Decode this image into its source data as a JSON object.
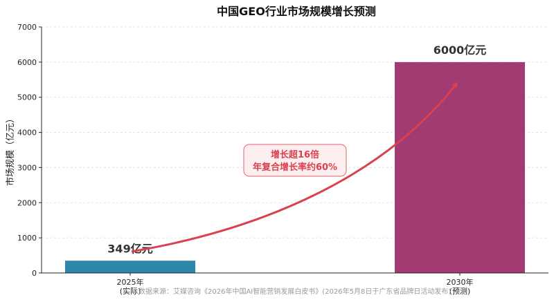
{
  "chart_data": {
    "type": "bar",
    "title": "中国GEO行业市场规模增长预测",
    "ylabel": "市场规模（亿元）",
    "xlabel": "",
    "categories": [
      "2025年\n(实际)",
      "2030年\n(预测)"
    ],
    "values": [
      349,
      6000
    ],
    "data_labels": [
      "349亿元",
      "6000亿元"
    ],
    "ylim": [
      0,
      7000
    ],
    "yticks": [
      0,
      1000,
      2000,
      3000,
      4000,
      5000,
      6000,
      7000
    ],
    "grid": true,
    "colors": [
      "#2e86ab",
      "#a23b72"
    ],
    "arrow_color": "#d94050",
    "annotation": [
      "增长超16倍",
      "年复合增长率约60%"
    ],
    "source": "数据来源：艾媒咨询《2026年中国AI智能营销发展白皮书》(2026年5月8日于广东省品牌日活动发布)"
  }
}
